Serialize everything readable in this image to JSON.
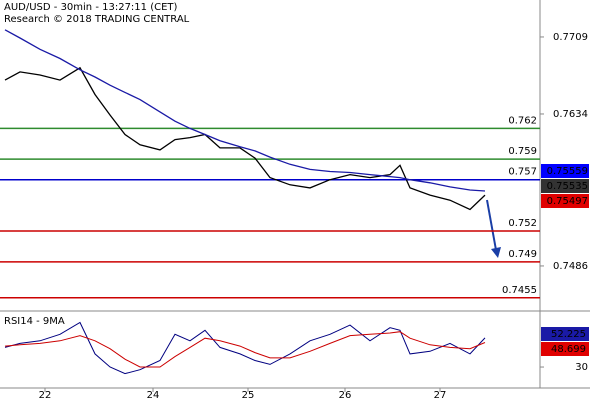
{
  "chart_data": [
    {
      "type": "line",
      "title": "AUD/USD - 30min - 13:27:11 (CET)",
      "subtitle": "Research © 2018 TRADING CENTRAL",
      "x": [
        -0.4,
        -0.25,
        -0.05,
        0.15,
        0.35,
        0.5,
        0.65,
        0.8,
        0.95,
        1.15,
        1.3,
        1.45,
        1.6,
        1.75,
        1.95,
        2.1,
        2.25,
        2.45,
        2.65,
        2.85,
        3.05,
        3.25,
        3.45,
        3.55,
        3.65,
        3.85,
        4.05,
        4.25,
        4.4
      ],
      "series": [
        {
          "color": "#000000",
          "values": [
            0.7667,
            0.7675,
            0.7672,
            0.7667,
            0.7679,
            0.7653,
            0.7633,
            0.7614,
            0.7604,
            0.7599,
            0.7609,
            0.7611,
            0.7614,
            0.7601,
            0.7601,
            0.7591,
            0.7572,
            0.7565,
            0.7562,
            0.757,
            0.7575,
            0.7572,
            0.7575,
            0.7584,
            0.7562,
            0.7555,
            0.755,
            0.7541,
            0.7555
          ]
        },
        {
          "color": "#1a1aa6",
          "values": [
            0.7716,
            0.7708,
            0.7697,
            0.7688,
            0.7677,
            0.767,
            0.7662,
            0.7655,
            0.7648,
            0.7636,
            0.7627,
            0.762,
            0.7614,
            0.7608,
            0.7602,
            0.7598,
            0.7592,
            0.7585,
            0.758,
            0.7578,
            0.7577,
            0.7575,
            0.7573,
            0.7572,
            0.757,
            0.7567,
            0.7563,
            0.756,
            0.7559
          ]
        }
      ],
      "levels": [
        0.762,
        0.759,
        0.757,
        0.752,
        0.749,
        0.7455
      ],
      "level_colors": [
        "#2e8b2e",
        "#2e8b2e",
        "#0000cc",
        "#cc0000",
        "#cc0000",
        "#cc0000"
      ],
      "price_labels": [
        0.75559,
        0.75535,
        0.75497
      ],
      "price_label_colors": [
        "#0000ff",
        "#333333",
        "#e00000"
      ],
      "xlim": [
        -0.45,
        4.95
      ],
      "ylim": [
        0.74431,
        0.7745
      ],
      "yticks": [
        0.7486,
        0.7634,
        0.7709
      ],
      "xticks": [
        {
          "value": 0,
          "label": "22"
        },
        {
          "value": 1.08,
          "label": "24"
        },
        {
          "value": 2.03,
          "label": "25"
        },
        {
          "value": 3.0,
          "label": "26"
        },
        {
          "value": 3.95,
          "label": "27"
        }
      ]
    },
    {
      "type": "line",
      "title": "RSI14 - 9MA",
      "series": [
        {
          "color": "#000080",
          "values": [
            45,
            48,
            50,
            55,
            64,
            40,
            30,
            25,
            28,
            35,
            55,
            50,
            58,
            45,
            40,
            35,
            32,
            40,
            50,
            55,
            62,
            50,
            60,
            58,
            40,
            42,
            48,
            40,
            52.225
          ]
        },
        {
          "color": "#cc0000",
          "values": [
            46,
            47,
            48,
            50,
            54,
            50,
            44,
            36,
            30,
            30,
            38,
            45,
            52,
            50,
            46,
            41,
            37,
            37,
            42,
            48,
            54,
            55,
            56,
            57,
            52,
            47,
            45,
            44,
            48.699
          ]
        }
      ],
      "ylim": [
        14,
        72
      ],
      "yticks": [
        30
      ]
    }
  ]
}
